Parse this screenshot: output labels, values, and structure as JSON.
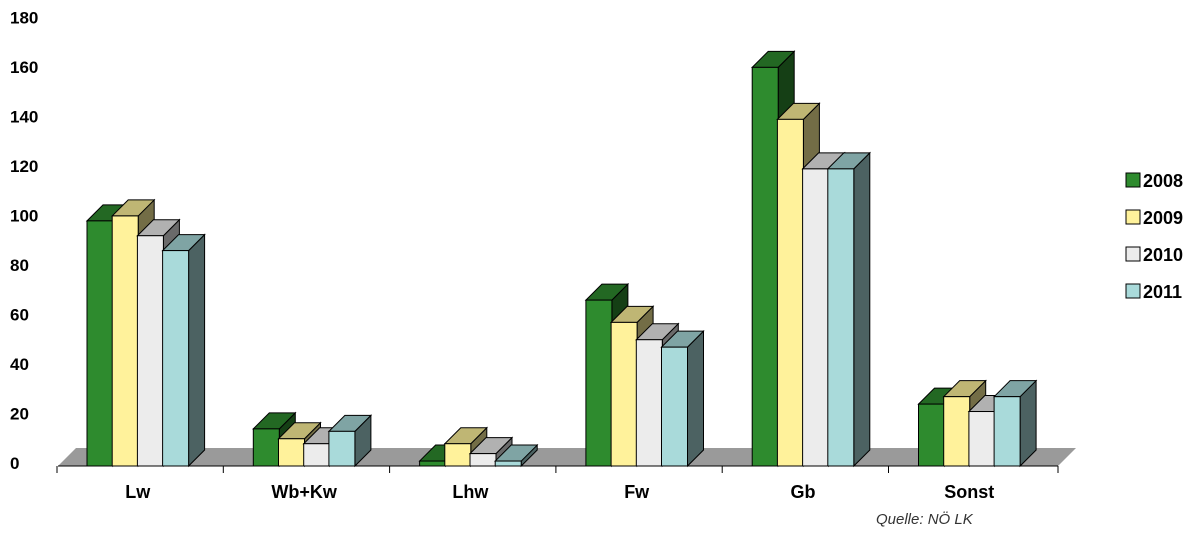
{
  "chart_data": {
    "type": "bar",
    "categories": [
      "Lw",
      "Wb+Kw",
      "Lhw",
      "Fw",
      "Gb",
      "Sonst"
    ],
    "series": [
      {
        "name": "2008",
        "values": [
          99,
          15,
          2,
          67,
          161,
          25
        ],
        "color": "#2e8b2e"
      },
      {
        "name": "2009",
        "values": [
          101,
          11,
          9,
          58,
          140,
          28
        ],
        "color": "#fff29b"
      },
      {
        "name": "2010",
        "values": [
          93,
          9,
          5,
          51,
          120,
          22
        ],
        "color": "#ececec"
      },
      {
        "name": "2011",
        "values": [
          87,
          14,
          2,
          48,
          120,
          28
        ],
        "color": "#a9dada"
      }
    ],
    "ylim": [
      0,
      180
    ],
    "yticks": [
      "0",
      "20",
      "40",
      "60",
      "80",
      "100",
      "120",
      "140",
      "160",
      "180"
    ],
    "legend_position": "right",
    "grid": false,
    "three_d": true
  },
  "source_note": "Quelle: NÖ LK"
}
